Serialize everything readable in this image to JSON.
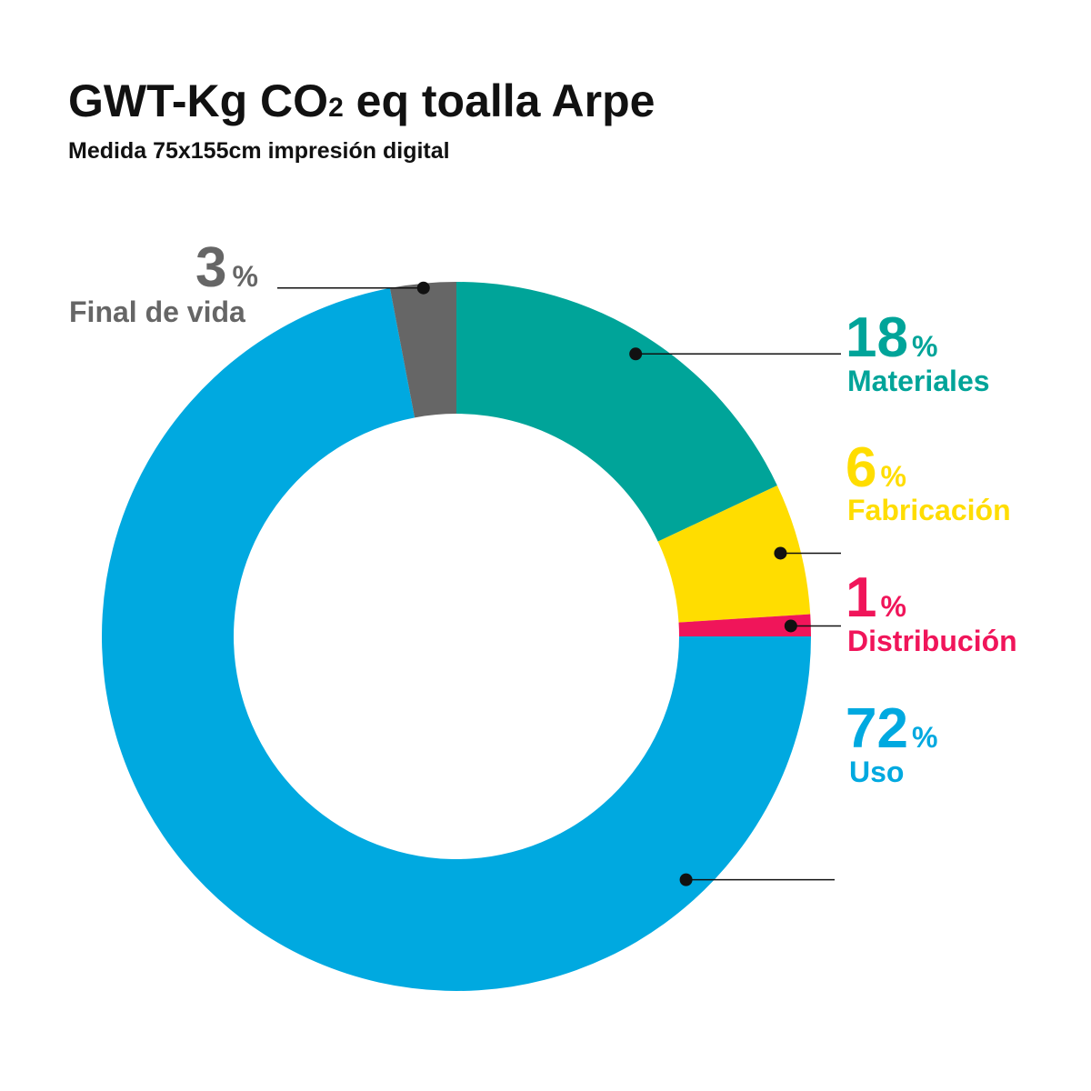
{
  "chart_data": {
    "type": "pie",
    "variant": "donut",
    "title_main": "GWT-Kg CO",
    "title_sub_digit": "2",
    "title_rest": " eq toalla Arpe",
    "subtitle": "Medida 75x155cm impresión digital",
    "percent_sign": "%",
    "slices": [
      {
        "label": "Materiales",
        "value": 18,
        "value_text": "18",
        "color": "#00A499"
      },
      {
        "label": "Fabricación",
        "value": 6,
        "value_text": "6",
        "color": "#FFDD00"
      },
      {
        "label": "Distribución",
        "value": 1,
        "value_text": "1",
        "color": "#F0155A"
      },
      {
        "label": "Uso",
        "value": 72,
        "value_text": "72",
        "color": "#00A9E0"
      },
      {
        "label": "Final de vida",
        "value": 3,
        "value_text": "3",
        "color": "#666666"
      }
    ]
  }
}
